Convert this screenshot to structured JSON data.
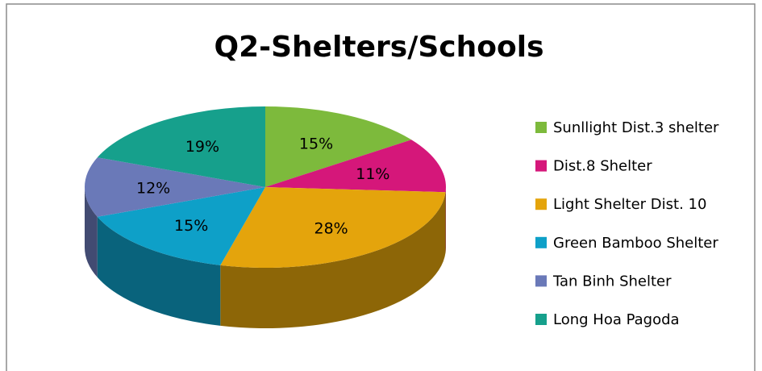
{
  "chart_data": {
    "type": "pie3d",
    "title": "Q2-Shelters/Schools",
    "categories": [
      "Sunllight Dist.3 shelter",
      "Dist.8 Shelter",
      "Light Shelter Dist. 10",
      "Green Bamboo Shelter",
      "Tan Binh Shelter",
      "Long Hoa Pagoda"
    ],
    "values": [
      15,
      11,
      28,
      15,
      12,
      19
    ],
    "value_labels": [
      "15%",
      "11%",
      "28%",
      "15%",
      "12%",
      "19%"
    ],
    "colors": [
      "#7dba3c",
      "#d5177a",
      "#e4a40c",
      "#0ea0c8",
      "#6a79b8",
      "#16a08c"
    ],
    "legend": "right"
  }
}
